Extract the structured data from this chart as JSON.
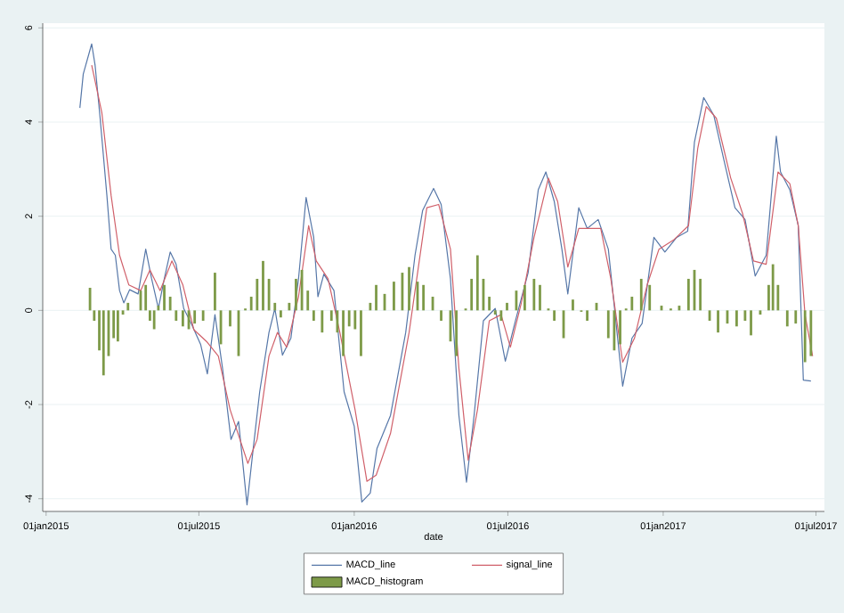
{
  "chart_data": {
    "type": "line",
    "xlabel": "date",
    "xlim": [
      "2014-12-28",
      "2017-07-11"
    ],
    "xticks": [
      {
        "value": "2015-01-01",
        "label": "01jan2015"
      },
      {
        "value": "2015-07-01",
        "label": "01jul2015"
      },
      {
        "value": "2016-01-01",
        "label": "01jan2016"
      },
      {
        "value": "2016-07-01",
        "label": "01jul2016"
      },
      {
        "value": "2017-01-01",
        "label": "01jan2017"
      },
      {
        "value": "2017-07-01",
        "label": "01jul2017"
      }
    ],
    "ylim": [
      -4.27,
      6.1
    ],
    "yticks": [
      -4,
      -2,
      0,
      2,
      4,
      6
    ],
    "grid": "y",
    "legend": "bottom",
    "marker": "none",
    "line_style": "solid",
    "series": [
      {
        "name": "MACD_line",
        "color": "#5677a8",
        "x": [
          "2015-02-10",
          "2015-02-14",
          "2015-02-24",
          "2015-02-28",
          "2015-03-06",
          "2015-03-14",
          "2015-03-19",
          "2015-03-24",
          "2015-03-29",
          "2015-04-03",
          "2015-04-10",
          "2015-04-20",
          "2015-04-29",
          "2015-05-06",
          "2015-05-14",
          "2015-05-21",
          "2015-05-28",
          "2015-06-04",
          "2015-06-13",
          "2015-06-22",
          "2015-07-03",
          "2015-07-11",
          "2015-07-20",
          "2015-07-29",
          "2015-08-08",
          "2015-08-17",
          "2015-08-27",
          "2015-09-03",
          "2015-09-11",
          "2015-09-22",
          "2015-09-29",
          "2015-10-08",
          "2015-10-18",
          "2015-10-27",
          "2015-11-05",
          "2015-11-14",
          "2015-11-19",
          "2015-11-26",
          "2015-12-08",
          "2015-12-20",
          "2016-01-01",
          "2016-01-10",
          "2016-01-20",
          "2016-01-28",
          "2016-02-13",
          "2016-03-02",
          "2016-03-13",
          "2016-03-22",
          "2016-04-04",
          "2016-04-13",
          "2016-04-24",
          "2016-05-04",
          "2016-05-13",
          "2016-05-22",
          "2016-06-02",
          "2016-06-16",
          "2016-06-28",
          "2016-07-10",
          "2016-07-25",
          "2016-08-06",
          "2016-08-15",
          "2016-08-25",
          "2016-09-03",
          "2016-09-10",
          "2016-09-23",
          "2016-10-03",
          "2016-10-16",
          "2016-10-28",
          "2016-11-14",
          "2016-11-25",
          "2016-12-07",
          "2016-12-21",
          "2017-01-03",
          "2017-01-17",
          "2017-01-30",
          "2017-02-07",
          "2017-02-18",
          "2017-03-02",
          "2017-03-14",
          "2017-03-27",
          "2017-04-08",
          "2017-04-20",
          "2017-05-03",
          "2017-05-15",
          "2017-05-20",
          "2017-05-31",
          "2017-06-10",
          "2017-06-16",
          "2017-06-25"
        ],
        "values": [
          4.3,
          5.02,
          5.66,
          5.21,
          4.08,
          2.44,
          1.3,
          1.17,
          0.42,
          0.16,
          0.44,
          0.35,
          1.3,
          0.67,
          0.04,
          0.67,
          1.24,
          0.98,
          0.04,
          -0.28,
          -0.72,
          -1.35,
          -0.09,
          -1.23,
          -2.74,
          -2.36,
          -4.13,
          -2.99,
          -1.73,
          -0.47,
          0.04,
          -0.95,
          -0.59,
          0.67,
          2.4,
          1.55,
          0.29,
          0.77,
          0.42,
          -1.73,
          -2.46,
          -4.07,
          -3.88,
          -2.93,
          -2.23,
          -0.47,
          1.17,
          2.12,
          2.59,
          2.25,
          0.67,
          -2.23,
          -3.65,
          -2.23,
          -0.22,
          0.04,
          -1.08,
          -0.22,
          0.8,
          2.56,
          2.94,
          2.31,
          1.3,
          0.35,
          2.18,
          1.74,
          1.93,
          1.3,
          -1.61,
          -0.59,
          -0.28,
          1.55,
          1.24,
          1.55,
          1.68,
          3.57,
          4.52,
          4.14,
          3.19,
          2.18,
          1.93,
          0.73,
          1.17,
          3.7,
          2.94,
          2.56,
          1.8,
          -1.48,
          -1.5
        ]
      },
      {
        "name": "signal_line",
        "color": "#d0606a",
        "x": [
          "2015-02-24",
          "2015-03-08",
          "2015-03-19",
          "2015-03-29",
          "2015-04-09",
          "2015-04-23",
          "2015-05-04",
          "2015-05-16",
          "2015-05-30",
          "2015-06-12",
          "2015-06-25",
          "2015-07-10",
          "2015-07-24",
          "2015-08-07",
          "2015-08-28",
          "2015-09-08",
          "2015-09-22",
          "2015-10-02",
          "2015-10-13",
          "2015-10-27",
          "2015-11-08",
          "2015-11-17",
          "2015-12-01",
          "2015-12-15",
          "2016-01-02",
          "2016-01-16",
          "2016-01-27",
          "2016-02-13",
          "2016-03-06",
          "2016-03-27",
          "2016-04-10",
          "2016-04-24",
          "2016-05-04",
          "2016-05-15",
          "2016-05-26",
          "2016-06-09",
          "2016-06-23",
          "2016-07-04",
          "2016-07-17",
          "2016-08-01",
          "2016-08-18",
          "2016-08-29",
          "2016-09-10",
          "2016-09-23",
          "2016-10-07",
          "2016-10-19",
          "2016-10-31",
          "2016-11-14",
          "2016-11-28",
          "2016-12-13",
          "2016-12-27",
          "2017-01-13",
          "2017-01-31",
          "2017-02-11",
          "2017-02-21",
          "2017-03-05",
          "2017-03-22",
          "2017-04-05",
          "2017-04-18",
          "2017-05-03",
          "2017-05-17",
          "2017-05-31",
          "2017-06-10",
          "2017-06-18",
          "2017-06-27"
        ],
        "values": [
          5.21,
          4.2,
          2.44,
          1.17,
          0.54,
          0.42,
          0.86,
          0.42,
          1.05,
          0.54,
          -0.41,
          -0.66,
          -0.97,
          -2.11,
          -3.25,
          -2.74,
          -0.97,
          -0.47,
          -0.78,
          0.29,
          1.8,
          1.05,
          0.67,
          -0.47,
          -2.11,
          -3.63,
          -3.5,
          -2.61,
          -0.47,
          2.18,
          2.25,
          1.3,
          -1.23,
          -3.18,
          -2.11,
          -0.22,
          -0.09,
          -0.78,
          0.16,
          1.55,
          2.81,
          2.31,
          0.92,
          1.74,
          1.74,
          1.74,
          0.67,
          -1.1,
          -0.59,
          0.54,
          1.3,
          1.49,
          1.8,
          3.45,
          4.33,
          4.08,
          2.81,
          2.06,
          1.05,
          0.98,
          2.94,
          2.69,
          1.8,
          -0.09,
          -0.97
        ]
      },
      {
        "name": "MACD_histogram",
        "type": "bar",
        "color": "#7d9a48",
        "x": [
          "2015-02-22",
          "2015-02-27",
          "2015-03-05",
          "2015-03-10",
          "2015-03-16",
          "2015-03-22",
          "2015-03-27",
          "2015-04-02",
          "2015-04-08",
          "2015-04-23",
          "2015-04-29",
          "2015-05-04",
          "2015-05-09",
          "2015-05-14",
          "2015-05-21",
          "2015-05-28",
          "2015-06-04",
          "2015-06-12",
          "2015-06-19",
          "2015-06-26",
          "2015-07-06",
          "2015-07-20",
          "2015-07-27",
          "2015-08-07",
          "2015-08-17",
          "2015-08-25",
          "2015-09-01",
          "2015-09-08",
          "2015-09-15",
          "2015-09-22",
          "2015-09-29",
          "2015-10-06",
          "2015-10-16",
          "2015-10-24",
          "2015-10-31",
          "2015-11-07",
          "2015-11-14",
          "2015-11-24",
          "2015-12-05",
          "2015-12-12",
          "2015-12-19",
          "2015-12-26",
          "2016-01-02",
          "2016-01-09",
          "2016-01-20",
          "2016-01-27",
          "2016-02-06",
          "2016-02-17",
          "2016-02-27",
          "2016-03-06",
          "2016-03-16",
          "2016-03-23",
          "2016-04-03",
          "2016-04-13",
          "2016-04-24",
          "2016-05-01",
          "2016-05-12",
          "2016-05-19",
          "2016-05-26",
          "2016-06-02",
          "2016-06-09",
          "2016-06-16",
          "2016-06-23",
          "2016-06-30",
          "2016-07-11",
          "2016-07-21",
          "2016-08-01",
          "2016-08-08",
          "2016-08-18",
          "2016-08-25",
          "2016-09-05",
          "2016-09-16",
          "2016-09-26",
          "2016-10-03",
          "2016-10-14",
          "2016-10-28",
          "2016-11-04",
          "2016-11-11",
          "2016-11-18",
          "2016-11-25",
          "2016-12-06",
          "2016-12-16",
          "2016-12-30",
          "2017-01-10",
          "2017-01-20",
          "2017-01-31",
          "2017-02-07",
          "2017-02-14",
          "2017-02-25",
          "2017-03-07",
          "2017-03-18",
          "2017-03-29",
          "2017-04-08",
          "2017-04-15",
          "2017-04-26",
          "2017-05-06",
          "2017-05-11",
          "2017-05-17",
          "2017-05-28",
          "2017-06-07",
          "2017-06-18",
          "2017-06-25"
        ],
        "values": [
          0.48,
          -0.22,
          -0.85,
          -1.38,
          -0.97,
          -0.59,
          -0.66,
          -0.09,
          0.16,
          0.42,
          0.54,
          -0.22,
          -0.4,
          0.1,
          0.54,
          0.29,
          -0.22,
          -0.34,
          -0.4,
          -0.28,
          -0.22,
          0.8,
          -0.72,
          -0.34,
          -0.97,
          0.04,
          0.29,
          0.67,
          1.05,
          0.67,
          0.16,
          -0.15,
          0.16,
          0.67,
          0.86,
          0.42,
          -0.22,
          -0.47,
          -0.22,
          -0.47,
          -0.97,
          -0.34,
          -0.4,
          -0.97,
          0.16,
          0.54,
          0.35,
          0.61,
          0.8,
          0.92,
          0.61,
          0.54,
          0.29,
          -0.22,
          -0.66,
          -0.97,
          0.04,
          0.67,
          1.17,
          0.67,
          0.29,
          -0.09,
          -0.22,
          0.16,
          0.42,
          0.54,
          0.67,
          0.54,
          0.04,
          -0.22,
          -0.59,
          0.23,
          -0.03,
          -0.22,
          0.16,
          -0.59,
          -0.85,
          -0.72,
          0.04,
          0.29,
          0.67,
          0.54,
          0.1,
          0.04,
          0.1,
          0.67,
          0.86,
          0.67,
          -0.22,
          -0.47,
          -0.28,
          -0.34,
          -0.22,
          -0.53,
          -0.09,
          0.54,
          0.98,
          0.54,
          -0.34,
          -0.28,
          -1.1,
          -0.97
        ]
      }
    ]
  }
}
